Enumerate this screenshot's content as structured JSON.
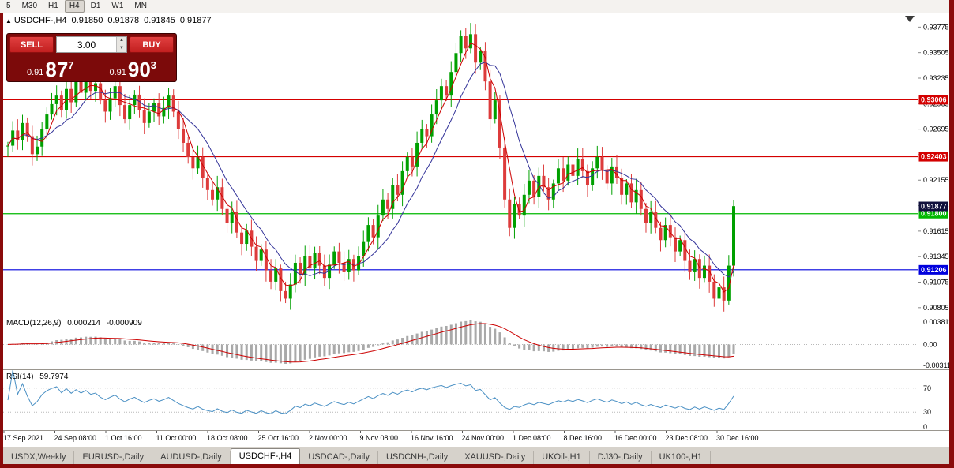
{
  "toolbar": {
    "timeframes": [
      "5",
      "M30",
      "H1",
      "H4",
      "D1",
      "W1",
      "MN"
    ],
    "active": "H4"
  },
  "chart_header": {
    "collapse_arrow": "▲",
    "symbol": "USDCHF-,H4",
    "open": "0.91850",
    "high": "0.91878",
    "low": "0.91845",
    "close": "0.91877"
  },
  "trade_panel": {
    "sell_label": "SELL",
    "buy_label": "BUY",
    "volume": "3.00",
    "sell_price_small": "0.91",
    "sell_price_big": "87",
    "sell_price_sup": "7",
    "buy_price_small": "0.91",
    "buy_price_big": "90",
    "buy_price_sup": "3"
  },
  "icons": {
    "spin_up": "▲",
    "spin_down": "▼"
  },
  "colors": {
    "frame": "#8a0b0b",
    "bull": "#00a000",
    "bear": "#dd3b3b",
    "ma_fast": "#cc0000",
    "ma_slow": "#333399",
    "line_red": "#d40000",
    "line_green": "#00b800",
    "line_blue": "#0000dd",
    "last_price_bg": "#10103c",
    "macd_hist": "#a9a9a9",
    "macd_signal": "#cc0000",
    "rsi_line": "#4a90c4"
  },
  "chart_data": {
    "type": "candlestick",
    "symbol": "USDCHF-",
    "timeframe": "H4",
    "last_price": 0.91877,
    "last_label": "0.91877",
    "price_range": [
      0.9072,
      0.9392
    ],
    "y_ticks": [
      "0.93775",
      "0.93505",
      "0.93235",
      "0.92965",
      "0.92695",
      "0.92425",
      "0.92155",
      "0.91885",
      "0.91615",
      "0.91345",
      "0.91075",
      "0.90805"
    ],
    "x_labels": [
      "17 Sep 2021",
      "24 Sep 08:00",
      "1 Oct 16:00",
      "11 Oct 00:00",
      "18 Oct 08:00",
      "25 Oct 16:00",
      "2 Nov 00:00",
      "9 Nov 08:00",
      "16 Nov 16:00",
      "24 Nov 00:00",
      "1 Dec 08:00",
      "8 Dec 16:00",
      "16 Dec 00:00",
      "23 Dec 08:00",
      "30 Dec 16:00"
    ],
    "hlines": [
      {
        "price": 0.93006,
        "label": "0.93006",
        "color": "line_red"
      },
      {
        "price": 0.92403,
        "label": "0.92403",
        "color": "line_red"
      },
      {
        "price": 0.918,
        "label": "0.91800",
        "color": "line_green"
      },
      {
        "price": 0.91206,
        "label": "0.91206",
        "color": "line_blue"
      }
    ],
    "closes": [
      0.9252,
      0.9268,
      0.9258,
      0.9276,
      0.9262,
      0.9243,
      0.9251,
      0.927,
      0.9285,
      0.9296,
      0.9305,
      0.929,
      0.9312,
      0.9298,
      0.932,
      0.9308,
      0.9325,
      0.931,
      0.9318,
      0.93,
      0.9288,
      0.9302,
      0.9315,
      0.9295,
      0.928,
      0.9295,
      0.9306,
      0.929,
      0.9276,
      0.9288,
      0.9297,
      0.9283,
      0.9292,
      0.9305,
      0.9288,
      0.927,
      0.9255,
      0.924,
      0.9228,
      0.924,
      0.9218,
      0.9205,
      0.9195,
      0.9208,
      0.9185,
      0.917,
      0.9182,
      0.916,
      0.9148,
      0.9162,
      0.9145,
      0.913,
      0.9142,
      0.912,
      0.9108,
      0.9122,
      0.9098,
      0.909,
      0.9105,
      0.9128,
      0.9115,
      0.9135,
      0.9122,
      0.9138,
      0.9125,
      0.9112,
      0.9126,
      0.914,
      0.9128,
      0.9118,
      0.9132,
      0.912,
      0.9135,
      0.915,
      0.9168,
      0.9155,
      0.9178,
      0.9195,
      0.9185,
      0.921,
      0.92,
      0.9225,
      0.924,
      0.923,
      0.9255,
      0.927,
      0.9262,
      0.9285,
      0.93,
      0.9315,
      0.9305,
      0.933,
      0.935,
      0.9368,
      0.9355,
      0.937,
      0.934,
      0.9352,
      0.932,
      0.928,
      0.93,
      0.925,
      0.9195,
      0.9165,
      0.919,
      0.9178,
      0.92,
      0.9215,
      0.9198,
      0.922,
      0.9208,
      0.9195,
      0.9212,
      0.9228,
      0.9215,
      0.9232,
      0.922,
      0.9238,
      0.9225,
      0.921,
      0.9228,
      0.924,
      0.9226,
      0.9212,
      0.923,
      0.9218,
      0.92,
      0.9212,
      0.9192,
      0.9205,
      0.9185,
      0.917,
      0.9182,
      0.9165,
      0.9152,
      0.9168,
      0.9155,
      0.914,
      0.9152,
      0.913,
      0.9118,
      0.9132,
      0.9112,
      0.9125,
      0.9108,
      0.909,
      0.9102,
      0.9088,
      0.9125,
      0.9188
    ],
    "indicators": {
      "macd": {
        "name": "MACD(12,26,9)",
        "value_main": "0.000214",
        "value_signal": "-0.000909",
        "axis_top": "0.003811",
        "axis_zero": "0.00",
        "axis_bottom": "-0.003116",
        "params": [
          12,
          26,
          9
        ]
      },
      "rsi": {
        "name": "RSI(14)",
        "value": "59.7974",
        "axis": [
          "70",
          "30",
          "0"
        ],
        "levels": [
          70,
          30
        ],
        "period": 14
      }
    }
  },
  "tabs": {
    "items": [
      "USDX,Weekly",
      "EURUSD-,Daily",
      "AUDUSD-,Daily",
      "USDCHF-,H4",
      "USDCAD-,Daily",
      "USDCNH-,Daily",
      "XAUUSD-,Daily",
      "UKOil-,H1",
      "DJ30-,Daily",
      "UK100-,H1"
    ],
    "active": "USDCHF-,H4"
  }
}
